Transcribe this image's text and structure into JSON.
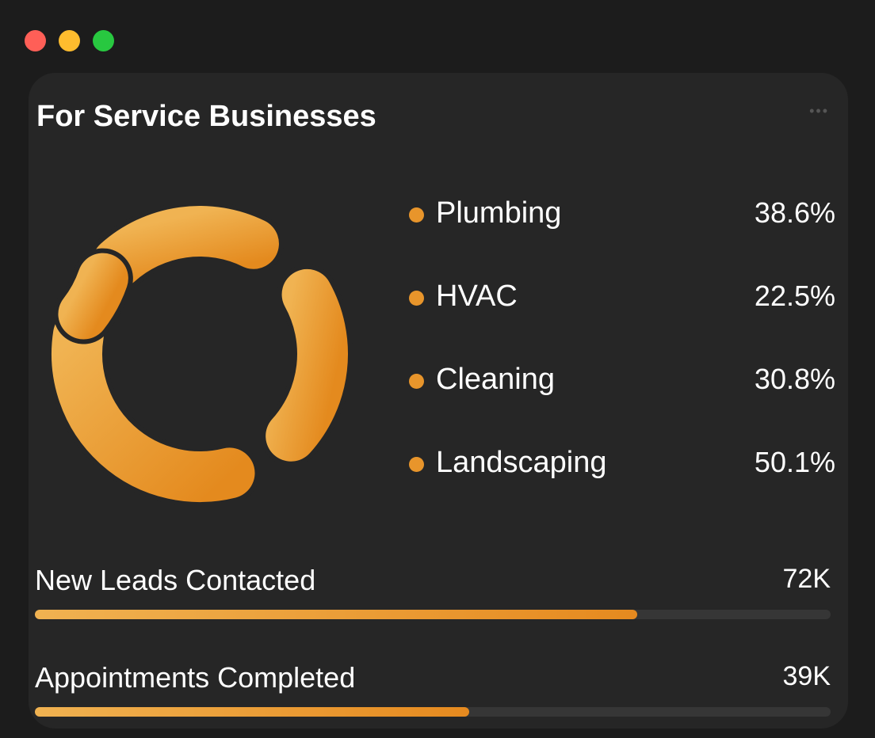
{
  "window": {
    "controls": [
      {
        "name": "close",
        "color": "#ff5f57"
      },
      {
        "name": "minimize",
        "color": "#febc2e"
      },
      {
        "name": "maximize",
        "color": "#28c840"
      }
    ]
  },
  "card": {
    "title": "For Service Businesses",
    "more_icon": "ellipsis-icon"
  },
  "chart_data": {
    "type": "pie",
    "style": "donut",
    "accent": "#e8952b",
    "legend_placement": "right",
    "categories": [
      "Plumbing",
      "HVAC",
      "Cleaning",
      "Landscaping"
    ],
    "values": [
      38.6,
      22.5,
      30.8,
      50.1
    ],
    "labels": [
      "38.6%",
      "22.5%",
      "30.8%",
      "50.1%"
    ]
  },
  "metrics": [
    {
      "label": "New Leads Contacted",
      "value": "72K",
      "progress": 0.757
    },
    {
      "label": "Appointments Completed",
      "value": "39K",
      "progress": 0.546
    }
  ]
}
